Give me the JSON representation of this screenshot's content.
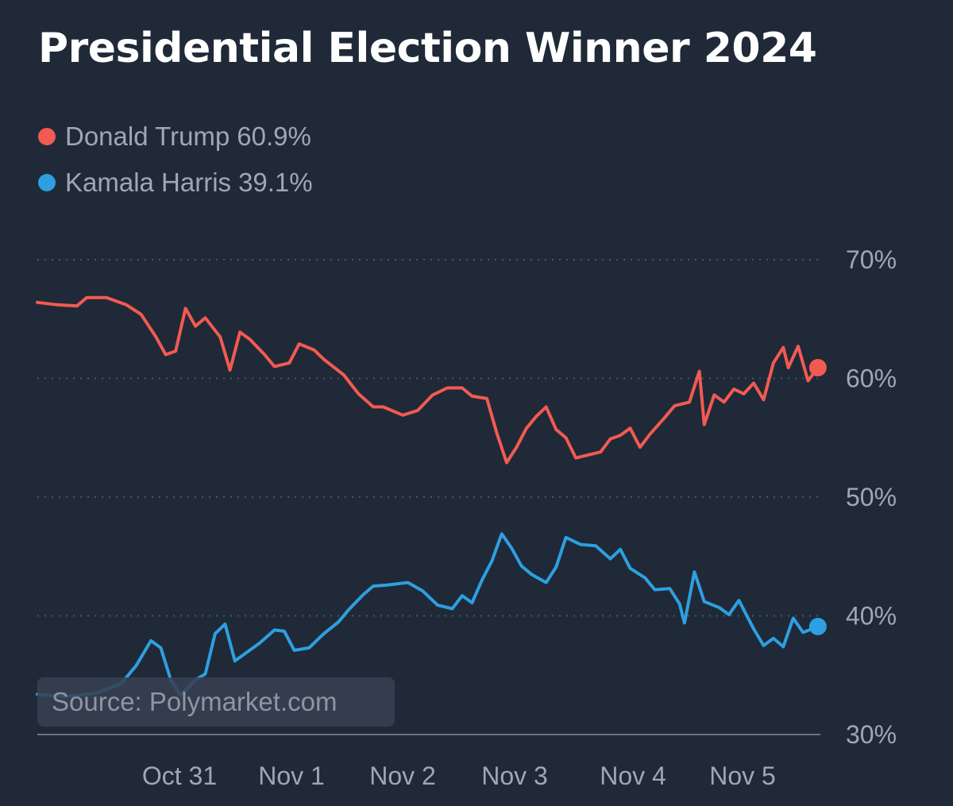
{
  "header": {
    "title": "Presidential Election Winner 2024"
  },
  "legend": {
    "items": [
      {
        "name": "Donald Trump",
        "value": "60.9%",
        "color": "#f25a52"
      },
      {
        "name": "Kamala Harris",
        "value": "39.1%",
        "color": "#2e9fe0"
      }
    ]
  },
  "source": {
    "label": "Source: Polymarket.com"
  },
  "colors": {
    "background": "#1f2937",
    "gridline": "#4b5563",
    "axis_text": "#a0a7b4"
  },
  "chart_data": {
    "type": "line",
    "title": "Presidential Election Winner 2024",
    "xlabel": "",
    "ylabel": "",
    "x_ticks": [
      "Oct 31",
      "Nov 1",
      "Nov 2",
      "Nov 3",
      "Nov 4",
      "Nov 5"
    ],
    "x_range": [
      "2024-10-30",
      "2024-11-05"
    ],
    "y_ticks": [
      "70%",
      "60%",
      "50%",
      "40%",
      "30%"
    ],
    "y_tick_values": [
      70,
      60,
      50,
      40,
      30
    ],
    "ylim": [
      30,
      70
    ],
    "grid": "horizontal-dotted",
    "legend_position": "top-left",
    "series": [
      {
        "name": "Donald Trump",
        "color": "#f25a52",
        "points": [
          [
            "2024-10-30T00:00",
            66.4
          ],
          [
            "2024-10-30T04:00",
            66.2
          ],
          [
            "2024-10-30T08:00",
            66.1
          ],
          [
            "2024-10-30T10:00",
            66.8
          ],
          [
            "2024-10-30T14:00",
            66.8
          ],
          [
            "2024-10-30T18:00",
            66.2
          ],
          [
            "2024-10-30T21:00",
            65.4
          ],
          [
            "2024-10-31T00:00",
            63.5
          ],
          [
            "2024-10-31T02:00",
            62.0
          ],
          [
            "2024-10-31T04:00",
            62.3
          ],
          [
            "2024-10-31T06:00",
            65.9
          ],
          [
            "2024-10-31T08:00",
            64.4
          ],
          [
            "2024-10-31T10:00",
            65.1
          ],
          [
            "2024-10-31T13:00",
            63.5
          ],
          [
            "2024-10-31T15:00",
            60.7
          ],
          [
            "2024-10-31T17:00",
            63.9
          ],
          [
            "2024-10-31T19:00",
            63.3
          ],
          [
            "2024-10-31T22:00",
            62.0
          ],
          [
            "2024-11-01T00:00",
            61.0
          ],
          [
            "2024-11-01T03:00",
            61.3
          ],
          [
            "2024-11-01T05:00",
            62.9
          ],
          [
            "2024-11-01T08:00",
            62.4
          ],
          [
            "2024-11-01T10:00",
            61.6
          ],
          [
            "2024-11-01T14:00",
            60.3
          ],
          [
            "2024-11-01T17:00",
            58.7
          ],
          [
            "2024-11-01T20:00",
            57.6
          ],
          [
            "2024-11-01T22:00",
            57.6
          ],
          [
            "2024-11-02T02:00",
            56.9
          ],
          [
            "2024-11-02T05:00",
            57.3
          ],
          [
            "2024-11-02T08:00",
            58.6
          ],
          [
            "2024-11-02T11:00",
            59.2
          ],
          [
            "2024-11-02T14:00",
            59.2
          ],
          [
            "2024-11-02T16:00",
            58.5
          ],
          [
            "2024-11-02T19:00",
            58.3
          ],
          [
            "2024-11-02T21:00",
            55.4
          ],
          [
            "2024-11-02T23:00",
            52.9
          ],
          [
            "2024-11-03T01:00",
            54.2
          ],
          [
            "2024-11-03T03:00",
            55.8
          ],
          [
            "2024-11-03T05:00",
            56.8
          ],
          [
            "2024-11-03T07:00",
            57.6
          ],
          [
            "2024-11-03T09:00",
            55.7
          ],
          [
            "2024-11-03T11:00",
            55.0
          ],
          [
            "2024-11-03T13:00",
            53.3
          ],
          [
            "2024-11-03T16:00",
            53.6
          ],
          [
            "2024-11-03T18:00",
            53.8
          ],
          [
            "2024-11-03T20:00",
            54.9
          ],
          [
            "2024-11-03T22:00",
            55.2
          ],
          [
            "2024-11-04T00:00",
            55.8
          ],
          [
            "2024-11-04T02:00",
            54.2
          ],
          [
            "2024-11-04T04:00",
            55.3
          ],
          [
            "2024-11-04T07:00",
            56.7
          ],
          [
            "2024-11-04T09:00",
            57.7
          ],
          [
            "2024-11-04T12:00",
            58.0
          ],
          [
            "2024-11-04T14:00",
            60.6
          ],
          [
            "2024-11-04T15:00",
            56.1
          ],
          [
            "2024-11-04T17:00",
            58.6
          ],
          [
            "2024-11-04T19:00",
            58.0
          ],
          [
            "2024-11-04T21:00",
            59.1
          ],
          [
            "2024-11-04T23:00",
            58.7
          ],
          [
            "2024-11-05T01:00",
            59.6
          ],
          [
            "2024-11-05T03:00",
            58.2
          ],
          [
            "2024-11-05T05:00",
            61.3
          ],
          [
            "2024-11-05T07:00",
            62.6
          ],
          [
            "2024-11-05T08:00",
            60.9
          ],
          [
            "2024-11-05T10:00",
            62.7
          ],
          [
            "2024-11-05T12:00",
            59.8
          ],
          [
            "2024-11-05T14:00",
            60.9
          ]
        ]
      },
      {
        "name": "Kamala Harris",
        "color": "#2e9fe0",
        "points": [
          [
            "2024-10-30T00:00",
            33.4
          ],
          [
            "2024-10-30T06:00",
            33.2
          ],
          [
            "2024-10-30T12:00",
            33.5
          ],
          [
            "2024-10-30T17:00",
            34.3
          ],
          [
            "2024-10-30T20:00",
            35.8
          ],
          [
            "2024-10-30T23:00",
            37.9
          ],
          [
            "2024-10-31T01:00",
            37.3
          ],
          [
            "2024-10-31T03:00",
            34.6
          ],
          [
            "2024-10-31T05:00",
            33.3
          ],
          [
            "2024-10-31T08:00",
            34.6
          ],
          [
            "2024-10-31T10:00",
            35.1
          ],
          [
            "2024-10-31T12:00",
            38.5
          ],
          [
            "2024-10-31T14:00",
            39.3
          ],
          [
            "2024-10-31T16:00",
            36.2
          ],
          [
            "2024-10-31T18:00",
            36.8
          ],
          [
            "2024-10-31T21:00",
            37.7
          ],
          [
            "2024-11-01T00:00",
            38.8
          ],
          [
            "2024-11-01T02:00",
            38.7
          ],
          [
            "2024-11-01T04:00",
            37.1
          ],
          [
            "2024-11-01T07:00",
            37.3
          ],
          [
            "2024-11-01T10:00",
            38.5
          ],
          [
            "2024-11-01T13:00",
            39.5
          ],
          [
            "2024-11-01T15:00",
            40.5
          ],
          [
            "2024-11-01T18:00",
            41.8
          ],
          [
            "2024-11-01T20:00",
            42.5
          ],
          [
            "2024-11-01T23:00",
            42.6
          ],
          [
            "2024-11-02T03:00",
            42.8
          ],
          [
            "2024-11-02T06:00",
            42.1
          ],
          [
            "2024-11-02T09:00",
            40.9
          ],
          [
            "2024-11-02T12:00",
            40.6
          ],
          [
            "2024-11-02T14:00",
            41.7
          ],
          [
            "2024-11-02T16:00",
            41.1
          ],
          [
            "2024-11-02T18:00",
            43.0
          ],
          [
            "2024-11-02T20:00",
            44.6
          ],
          [
            "2024-11-02T22:00",
            46.9
          ],
          [
            "2024-11-03T00:00",
            45.7
          ],
          [
            "2024-11-03T02:00",
            44.2
          ],
          [
            "2024-11-03T04:00",
            43.5
          ],
          [
            "2024-11-03T07:00",
            42.8
          ],
          [
            "2024-11-03T09:00",
            44.1
          ],
          [
            "2024-11-03T11:00",
            46.6
          ],
          [
            "2024-11-03T14:00",
            46.0
          ],
          [
            "2024-11-03T17:00",
            45.9
          ],
          [
            "2024-11-03T20:00",
            44.8
          ],
          [
            "2024-11-03T22:00",
            45.6
          ],
          [
            "2024-11-04T00:00",
            44.0
          ],
          [
            "2024-11-04T03:00",
            43.2
          ],
          [
            "2024-11-04T05:00",
            42.2
          ],
          [
            "2024-11-04T08:00",
            42.3
          ],
          [
            "2024-11-04T10:00",
            41.0
          ],
          [
            "2024-11-04T11:00",
            39.4
          ],
          [
            "2024-11-04T13:00",
            43.7
          ],
          [
            "2024-11-04T15:00",
            41.2
          ],
          [
            "2024-11-04T18:00",
            40.7
          ],
          [
            "2024-11-04T20:00",
            40.1
          ],
          [
            "2024-11-04T22:00",
            41.3
          ],
          [
            "2024-11-05T01:00",
            38.9
          ],
          [
            "2024-11-05T03:00",
            37.5
          ],
          [
            "2024-11-05T05:00",
            38.1
          ],
          [
            "2024-11-05T07:00",
            37.4
          ],
          [
            "2024-11-05T09:00",
            39.8
          ],
          [
            "2024-11-05T11:00",
            38.6
          ],
          [
            "2024-11-05T14:00",
            39.1
          ]
        ]
      }
    ]
  }
}
